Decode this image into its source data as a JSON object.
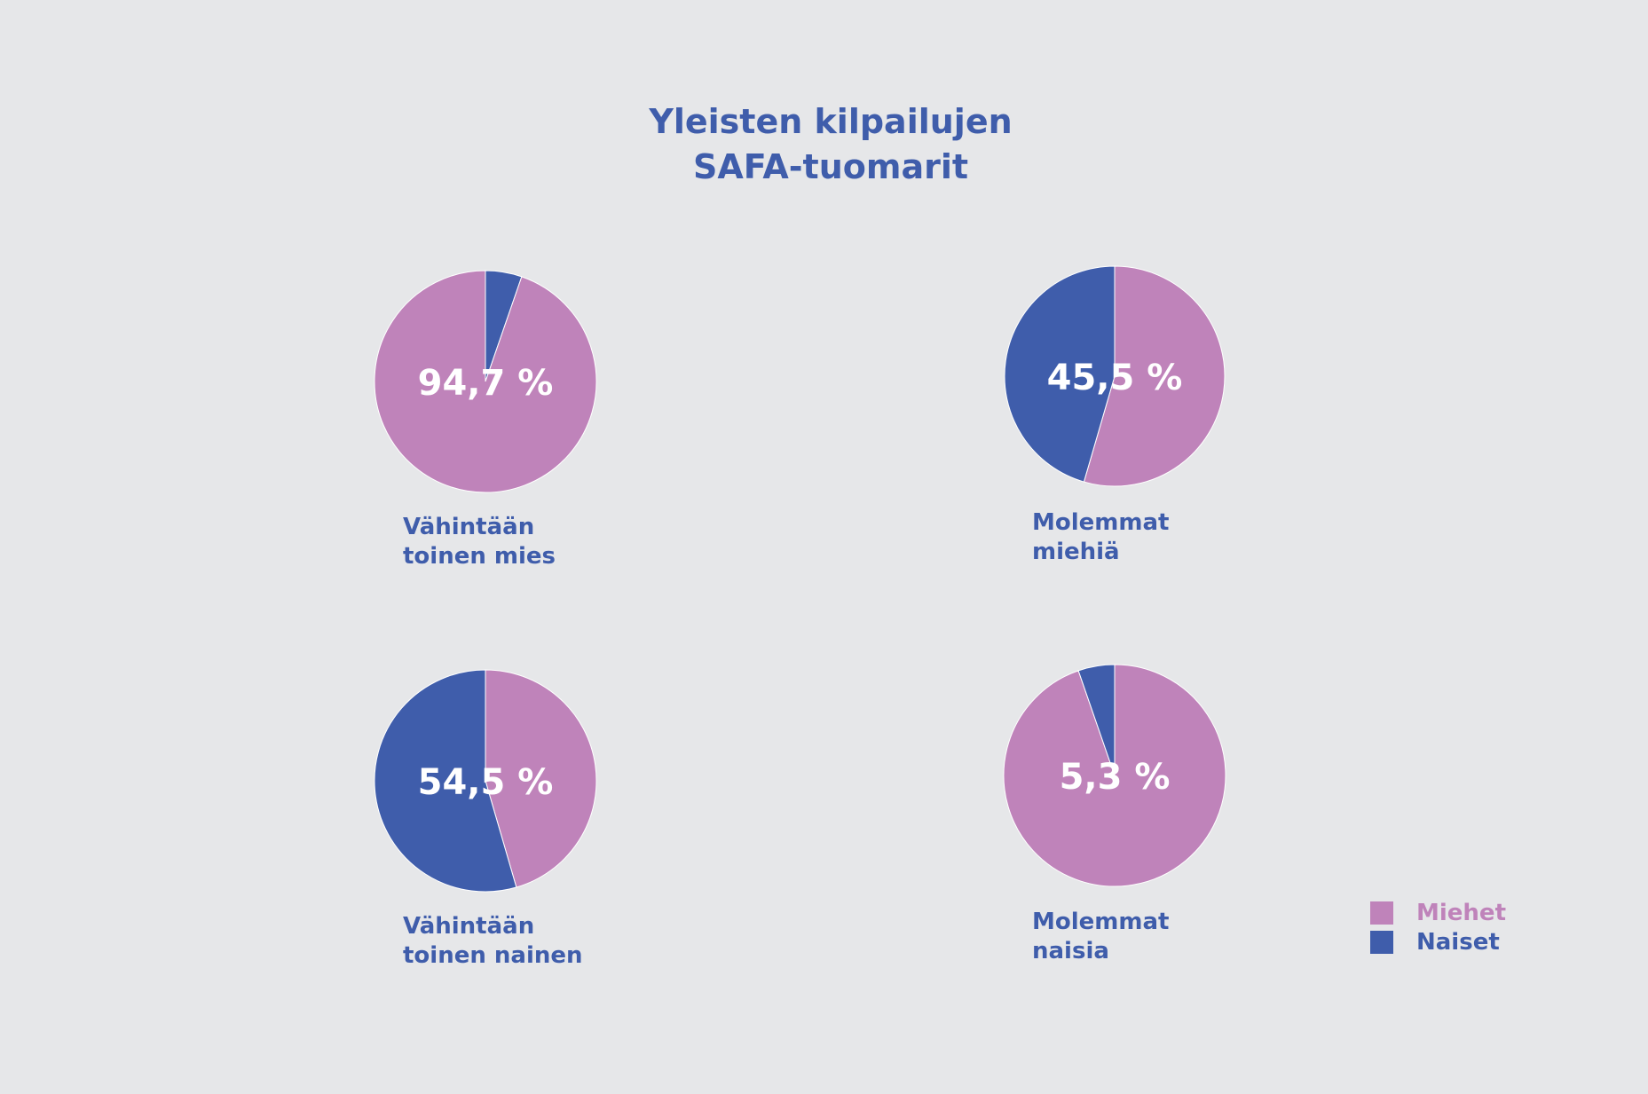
{
  "title": {
    "line1": "Yleisten kilpailujen",
    "line2": "SAFA-tuomarit"
  },
  "colors": {
    "Miehet": "#bf83ba",
    "Naiset": "#3f5dab",
    "text": "#3f5dab",
    "background": "#e6e7e9",
    "value_label": "#ffffff"
  },
  "legend": [
    {
      "label": "Miehet",
      "color": "#bf83ba"
    },
    {
      "label": "Naiset",
      "color": "#3f5dab"
    }
  ],
  "chart_data": [
    {
      "type": "pie",
      "label_lines": [
        "Vähintään",
        "toinen mies"
      ],
      "value_label": "94,7 %",
      "slices": [
        {
          "category": "Naiset",
          "value": 5.3
        },
        {
          "category": "Miehet",
          "value": 94.7
        }
      ]
    },
    {
      "type": "pie",
      "label_lines": [
        "Molemmat",
        "miehiä"
      ],
      "value_label": "45,5 %",
      "slices": [
        {
          "category": "Miehet",
          "value": 54.5
        },
        {
          "category": "Naiset",
          "value": 45.5
        }
      ]
    },
    {
      "type": "pie",
      "label_lines": [
        "Vähintään",
        "toinen nainen"
      ],
      "value_label": "54,5 %",
      "slices": [
        {
          "category": "Miehet",
          "value": 45.5
        },
        {
          "category": "Naiset",
          "value": 54.5
        }
      ]
    },
    {
      "type": "pie",
      "label_lines": [
        "Molemmat",
        "naisia"
      ],
      "value_label": "5,3 %",
      "slices": [
        {
          "category": "Miehet",
          "value": 94.7
        },
        {
          "category": "Naiset",
          "value": 5.3
        }
      ]
    }
  ]
}
